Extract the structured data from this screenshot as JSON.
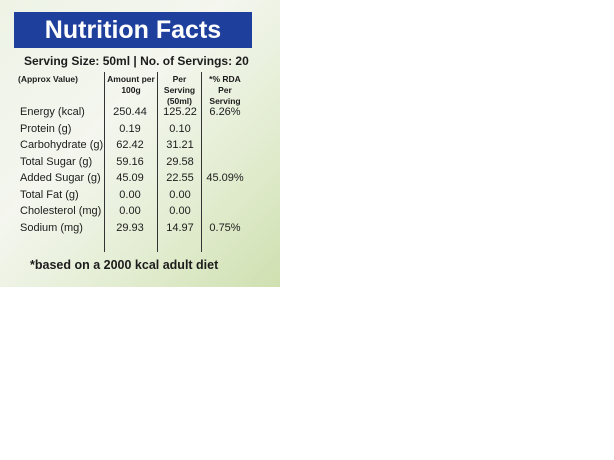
{
  "label": {
    "title": "Nutrition Facts",
    "serving": "Serving Size: 50ml | No. of Servings: 20",
    "headers": [
      "(Approx Value)",
      "Amount per 100g",
      "Per Serving (50ml)",
      "*% RDA Per Serving"
    ],
    "rows": [
      [
        "Energy (kcal)",
        "250.44",
        "125.22",
        "6.26%"
      ],
      [
        "Protein (g)",
        "0.19",
        "0.10"
      ],
      [
        "Carbohydrate (g)",
        "62.42",
        "31.21"
      ],
      [
        "Total Sugar (g)",
        "59.16",
        "29.58"
      ],
      [
        "Added Sugar (g)",
        "45.09",
        "22.55",
        "45.09%"
      ],
      [
        "Total Fat (g)",
        "0.00",
        "0.00"
      ],
      [
        "Cholesterol (mg)",
        "0.00",
        "0.00"
      ],
      [
        "Sodium (mg)",
        "29.93",
        "14.97",
        "0.75%"
      ]
    ],
    "footnote": "*based on a 2000 kcal adult diet"
  }
}
